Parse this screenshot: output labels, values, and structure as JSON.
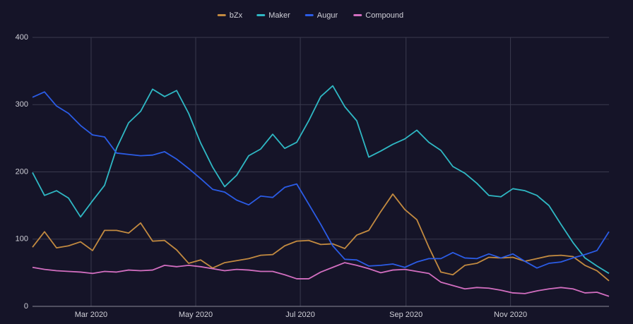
{
  "chart_data": {
    "type": "line",
    "xlim": [
      0,
      48
    ],
    "xticks": [
      {
        "value": 4.88,
        "label": "Mar 2020"
      },
      {
        "value": 13.59,
        "label": "May 2020"
      },
      {
        "value": 22.3,
        "label": "Jul 2020"
      },
      {
        "value": 31.1,
        "label": "Sep 2020"
      },
      {
        "value": 39.8,
        "label": "Nov 2020"
      }
    ],
    "ylim": [
      0,
      400
    ],
    "yticks": [
      0,
      100,
      200,
      300,
      400
    ],
    "grid": true,
    "legend": "top",
    "series": [
      {
        "name": "bZx",
        "color": "#c28a40",
        "values": [
          88,
          111,
          87,
          90,
          96,
          83,
          113,
          113,
          109,
          124,
          97,
          98,
          84,
          64,
          69,
          57,
          65,
          68,
          71,
          76,
          77,
          90,
          97,
          98,
          92,
          93,
          86,
          106,
          113,
          141,
          167,
          144,
          129,
          88,
          51,
          47,
          61,
          64,
          73,
          72,
          73,
          67,
          71,
          75,
          76,
          74,
          61,
          53,
          38
        ]
      },
      {
        "name": "Maker",
        "color": "#2fb8c4",
        "values": [
          199,
          165,
          172,
          161,
          133,
          157,
          180,
          235,
          273,
          290,
          323,
          312,
          321,
          287,
          243,
          207,
          178,
          195,
          224,
          234,
          256,
          235,
          244,
          276,
          312,
          328,
          297,
          276,
          222,
          231,
          241,
          249,
          262,
          244,
          232,
          208,
          198,
          183,
          165,
          163,
          175,
          172,
          165,
          150,
          122,
          95,
          72,
          60,
          49
        ]
      },
      {
        "name": "Augur",
        "color": "#2b5ce6",
        "values": [
          311,
          319,
          298,
          287,
          269,
          255,
          252,
          228,
          226,
          224,
          225,
          230,
          219,
          205,
          190,
          174,
          170,
          158,
          151,
          164,
          162,
          177,
          182,
          152,
          122,
          90,
          70,
          69,
          60,
          61,
          63,
          58,
          66,
          71,
          71,
          80,
          72,
          71,
          78,
          72,
          78,
          67,
          57,
          64,
          66,
          72,
          77,
          83,
          111
        ]
      },
      {
        "name": "Compound",
        "color": "#d26ec0",
        "values": [
          58,
          55,
          53,
          52,
          51,
          49,
          52,
          51,
          54,
          53,
          54,
          61,
          59,
          61,
          59,
          56,
          53,
          55,
          54,
          52,
          52,
          47,
          41,
          41,
          51,
          58,
          65,
          61,
          56,
          50,
          54,
          55,
          52,
          49,
          36,
          31,
          26,
          28,
          27,
          24,
          20,
          19,
          23,
          26,
          28,
          26,
          20,
          21,
          15
        ]
      }
    ]
  }
}
